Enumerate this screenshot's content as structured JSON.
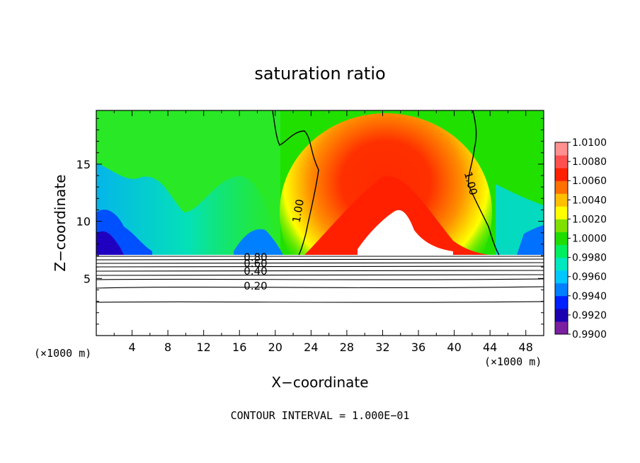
{
  "chart_data": {
    "type": "heatmap",
    "title": "saturation ratio",
    "xlabel": "X−coordinate",
    "ylabel": "Z−coordinate",
    "x_unit": "(×1000 m)",
    "y_unit": "(×1000 m)",
    "xlim": [
      0,
      50
    ],
    "ylim": [
      0,
      19.7
    ],
    "x_ticks": [
      4,
      8,
      12,
      16,
      20,
      24,
      28,
      32,
      36,
      40,
      44,
      48
    ],
    "y_ticks": [
      5,
      10,
      15
    ],
    "footer": "CONTOUR INTERVAL = 1.000E−01",
    "colorbar": {
      "labels": [
        "1.0100",
        "1.0080",
        "1.0060",
        "1.0040",
        "1.0020",
        "1.0000",
        "0.9980",
        "0.9960",
        "0.9940",
        "0.9920",
        "0.9900"
      ],
      "min": 0.99,
      "max": 1.01,
      "colors": [
        "#7a1fa0",
        "#1a00b0",
        "#0020ff",
        "#0080ff",
        "#00c8ff",
        "#00e8c0",
        "#00ee60",
        "#20dd00",
        "#80e000",
        "#ffff00",
        "#ffc000",
        "#ff7000",
        "#ff2000",
        "#ff5050",
        "#ff9090"
      ]
    },
    "contour_labels": [
      {
        "text": "1.00",
        "x": 22.6,
        "z": 10.9,
        "rotate": -80
      },
      {
        "text": "1.00",
        "x": 41.8,
        "z": 13.3,
        "rotate": 75
      },
      {
        "text": "0.80",
        "x": 17.8,
        "z": 6.8,
        "rotate": 0
      },
      {
        "text": "0.60",
        "x": 17.8,
        "z": 6.3,
        "rotate": 0
      },
      {
        "text": "0.40",
        "x": 17.8,
        "z": 5.6,
        "rotate": 0
      },
      {
        "text": "0.20",
        "x": 17.8,
        "z": 4.3,
        "rotate": 0
      }
    ]
  }
}
